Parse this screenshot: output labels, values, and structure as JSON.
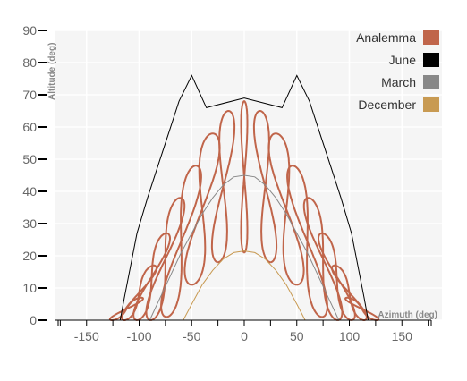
{
  "chart_data": {
    "type": "line",
    "xlabel": "Azimuth (deg)",
    "ylabel": "Altitude (deg)",
    "xlim": [
      -180,
      180
    ],
    "ylim": [
      0,
      90
    ],
    "xticks": [
      -150,
      -100,
      -50,
      0,
      50,
      100,
      150
    ],
    "yticks": [
      0,
      10,
      20,
      30,
      40,
      50,
      60,
      70,
      80,
      90
    ],
    "grid": true,
    "legend_position": "top-right",
    "legend": [
      {
        "name": "Analemma",
        "color": "#c0654a"
      },
      {
        "name": "June",
        "color": "#000000"
      },
      {
        "name": "March",
        "color": "#888888"
      },
      {
        "name": "December",
        "color": "#c89a52"
      }
    ],
    "series": [
      {
        "name": "June",
        "color": "#000000",
        "x": [
          -118,
          -114,
          -102,
          -92,
          -82,
          -72,
          -62,
          -50,
          -36,
          0,
          36,
          50,
          62,
          72,
          82,
          92,
          102,
          114,
          118
        ],
        "y": [
          0,
          7,
          27,
          38,
          48,
          58,
          68,
          76,
          66,
          69,
          66,
          76,
          68,
          58,
          48,
          38,
          27,
          7,
          0
        ]
      },
      {
        "name": "March",
        "color": "#888888",
        "x": [
          -90,
          -80,
          -70,
          -60,
          -50,
          -40,
          -30,
          -20,
          -10,
          0,
          10,
          20,
          30,
          40,
          50,
          60,
          70,
          80,
          90
        ],
        "y": [
          0,
          7,
          14,
          21,
          27,
          33,
          38,
          42,
          44.5,
          45,
          44.5,
          42,
          38,
          33,
          27,
          21,
          14,
          7,
          0
        ]
      },
      {
        "name": "December",
        "color": "#c89a52",
        "x": [
          -58,
          -50,
          -40,
          -30,
          -20,
          -10,
          0,
          10,
          20,
          30,
          40,
          50,
          58
        ],
        "y": [
          0,
          5,
          11,
          15.5,
          19,
          21,
          21.5,
          21,
          19,
          15.5,
          11,
          5,
          0
        ]
      }
    ],
    "analemmas": [
      {
        "center_azimuth": -112,
        "top_altitude": 7,
        "width": 8
      },
      {
        "center_azimuth": -100,
        "top_altitude": 17,
        "width": 10
      },
      {
        "center_azimuth": -88,
        "top_altitude": 27,
        "width": 12
      },
      {
        "center_azimuth": -75,
        "top_altitude": 38,
        "width": 14
      },
      {
        "center_azimuth": -60,
        "top_altitude": 48,
        "width": 16
      },
      {
        "center_azimuth": -40,
        "top_altitude": 58,
        "width": 18
      },
      {
        "center_azimuth": -20,
        "top_altitude": 65,
        "width": 14
      },
      {
        "center_azimuth": 0,
        "top_altitude": 68,
        "width": 6
      },
      {
        "center_azimuth": 20,
        "top_altitude": 65,
        "width": 14
      },
      {
        "center_azimuth": 40,
        "top_altitude": 58,
        "width": 18
      },
      {
        "center_azimuth": 60,
        "top_altitude": 48,
        "width": 16
      },
      {
        "center_azimuth": 75,
        "top_altitude": 38,
        "width": 14
      },
      {
        "center_azimuth": 88,
        "top_altitude": 27,
        "width": 12
      },
      {
        "center_azimuth": 100,
        "top_altitude": 17,
        "width": 10
      },
      {
        "center_azimuth": 112,
        "top_altitude": 7,
        "width": 8
      }
    ]
  }
}
